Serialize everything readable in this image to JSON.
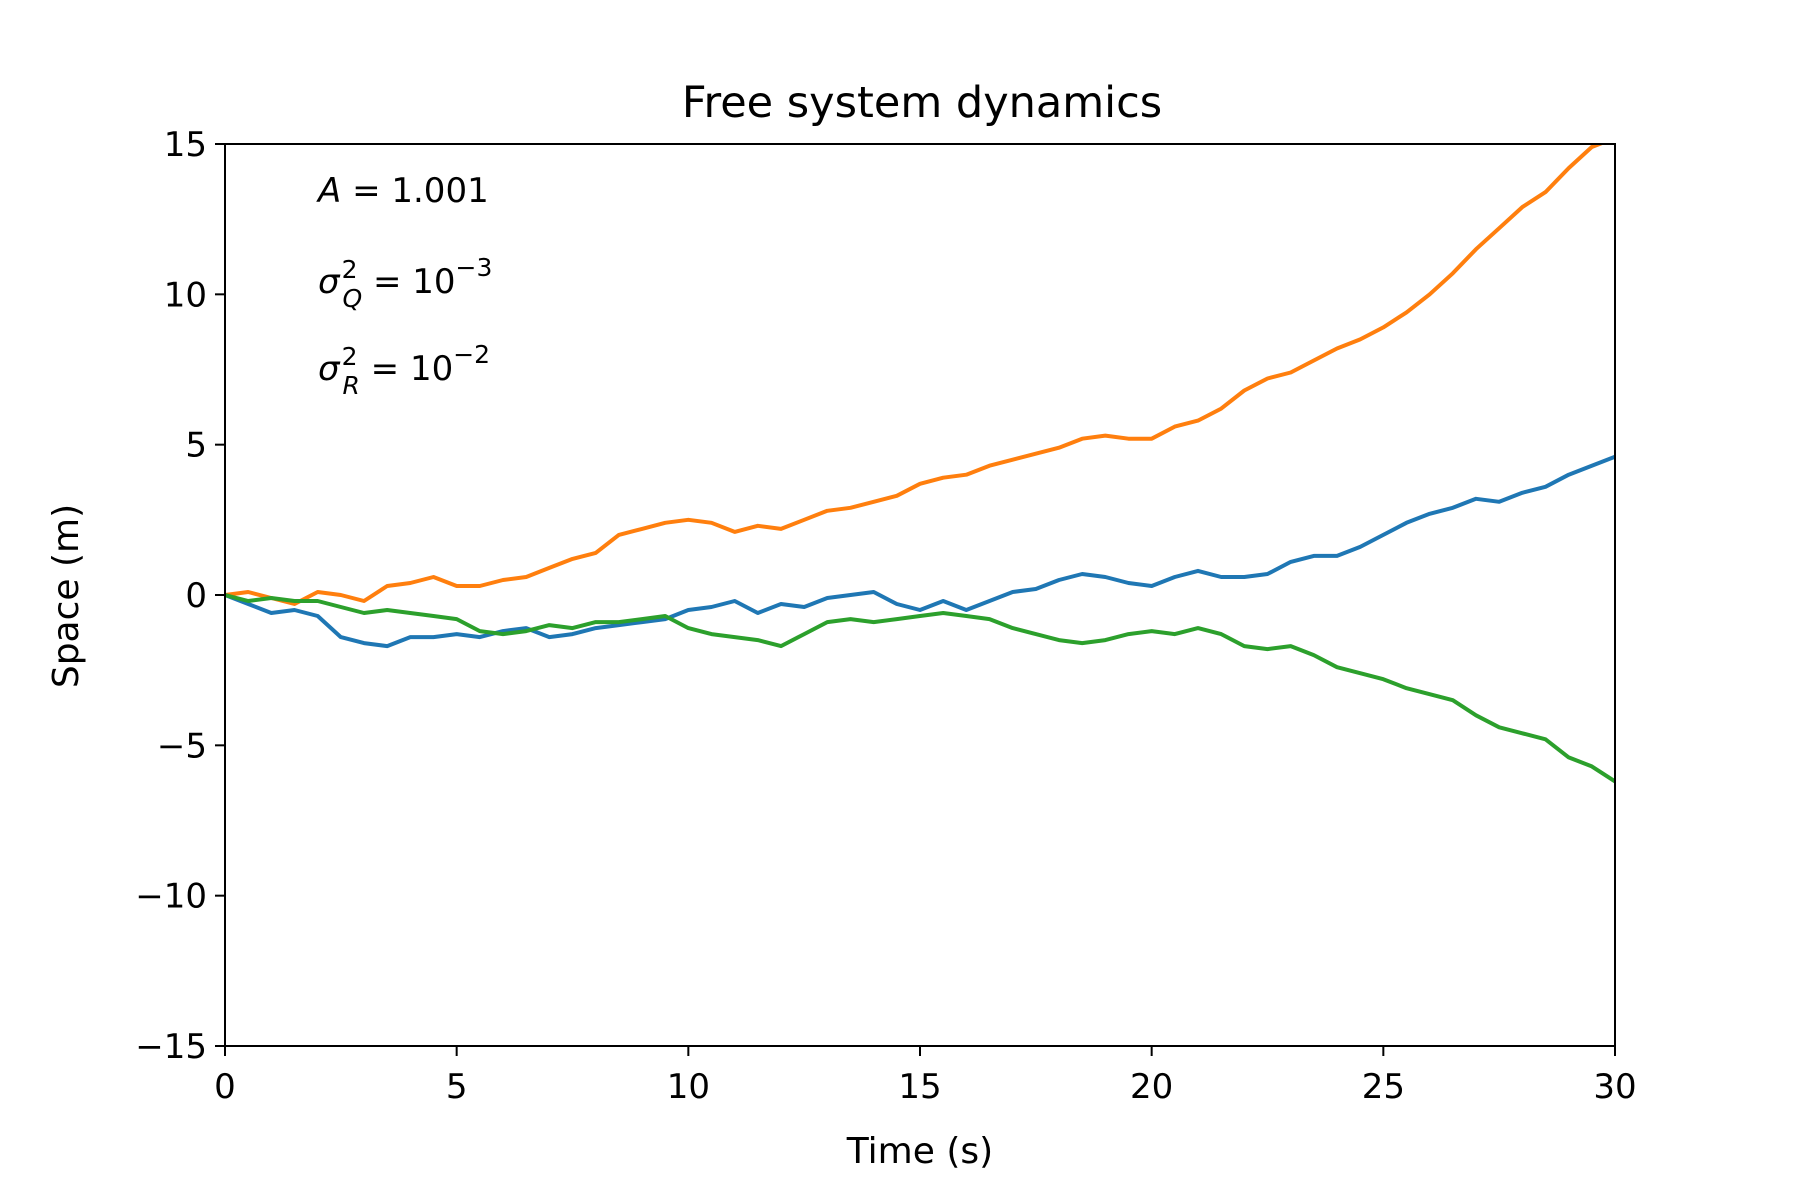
{
  "chart_data": {
    "type": "line",
    "title": "Free system dynamics",
    "xlabel": "Time (s)",
    "ylabel": "Space (m)",
    "xlim": [
      0,
      30
    ],
    "ylim": [
      -15,
      15
    ],
    "xticks": [
      0,
      5,
      10,
      15,
      20,
      25,
      30
    ],
    "yticks": [
      -15,
      -10,
      -5,
      0,
      5,
      10,
      15
    ],
    "xtick_labels": [
      "0",
      "5",
      "10",
      "15",
      "20",
      "25",
      "30"
    ],
    "ytick_labels": [
      "−15",
      "−10",
      "−5",
      "0",
      "5",
      "10",
      "15"
    ],
    "grid": false,
    "legend": "none",
    "annotations": {
      "a": {
        "symbol": "A",
        "rest": " = 1.001"
      },
      "q": {
        "symbol": "σ",
        "sup": "2",
        "sub": "Q",
        "rest": " = 10",
        "exp": "−3"
      },
      "r": {
        "symbol": "σ",
        "sup": "2",
        "sub": "R",
        "rest": " = 10",
        "exp": "−2"
      }
    },
    "series": [
      {
        "color": "#1f77b4",
        "x": [
          0,
          0.5,
          1,
          1.5,
          2,
          2.5,
          3,
          3.5,
          4,
          4.5,
          5,
          5.5,
          6,
          6.5,
          7,
          7.5,
          8,
          8.5,
          9,
          9.5,
          10,
          10.5,
          11,
          11.5,
          12,
          12.5,
          13,
          13.5,
          14,
          14.5,
          15,
          15.5,
          16,
          16.5,
          17,
          17.5,
          18,
          18.5,
          19,
          19.5,
          20,
          20.5,
          21,
          21.5,
          22,
          22.5,
          23,
          23.5,
          24,
          24.5,
          25,
          25.5,
          26,
          26.5,
          27,
          27.5,
          28,
          28.5,
          29,
          29.5,
          30
        ],
        "values": [
          0,
          -0.3,
          -0.6,
          -0.5,
          -0.7,
          -1.4,
          -1.6,
          -1.7,
          -1.4,
          -1.4,
          -1.3,
          -1.4,
          -1.2,
          -1.1,
          -1.4,
          -1.3,
          -1.1,
          -1.0,
          -0.9,
          -0.8,
          -0.5,
          -0.4,
          -0.2,
          -0.6,
          -0.3,
          -0.4,
          -0.1,
          0.0,
          0.1,
          -0.3,
          -0.5,
          -0.2,
          -0.5,
          -0.2,
          0.1,
          0.2,
          0.5,
          0.7,
          0.6,
          0.4,
          0.3,
          0.6,
          0.8,
          0.6,
          0.6,
          0.7,
          1.1,
          1.3,
          1.3,
          1.6,
          2.0,
          2.4,
          2.7,
          2.9,
          3.2,
          3.1,
          3.4,
          3.6,
          4.0,
          4.3,
          4.6
        ]
      },
      {
        "color": "#ff7f0e",
        "x": [
          0,
          0.5,
          1,
          1.5,
          2,
          2.5,
          3,
          3.5,
          4,
          4.5,
          5,
          5.5,
          6,
          6.5,
          7,
          7.5,
          8,
          8.5,
          9,
          9.5,
          10,
          10.5,
          11,
          11.5,
          12,
          12.5,
          13,
          13.5,
          14,
          14.5,
          15,
          15.5,
          16,
          16.5,
          17,
          17.5,
          18,
          18.5,
          19,
          19.5,
          20,
          20.5,
          21,
          21.5,
          22,
          22.5,
          23,
          23.5,
          24,
          24.5,
          25,
          25.5,
          26,
          26.5,
          27,
          27.5,
          28,
          28.5,
          29,
          29.5,
          30
        ],
        "values": [
          0,
          0.1,
          -0.1,
          -0.3,
          0.1,
          0.0,
          -0.2,
          0.3,
          0.4,
          0.6,
          0.3,
          0.3,
          0.5,
          0.6,
          0.9,
          1.2,
          1.4,
          2.0,
          2.2,
          2.4,
          2.5,
          2.4,
          2.1,
          2.3,
          2.2,
          2.5,
          2.8,
          2.9,
          3.1,
          3.3,
          3.7,
          3.9,
          4.0,
          4.3,
          4.5,
          4.7,
          4.9,
          5.2,
          5.3,
          5.2,
          5.2,
          5.6,
          5.8,
          6.2,
          6.8,
          7.2,
          7.4,
          7.8,
          8.2,
          8.5,
          8.9,
          9.4,
          10.0,
          10.7,
          11.5,
          12.2,
          12.9,
          13.4,
          14.2,
          14.9,
          15.2
        ]
      },
      {
        "color": "#2ca02c",
        "x": [
          0,
          0.5,
          1,
          1.5,
          2,
          2.5,
          3,
          3.5,
          4,
          4.5,
          5,
          5.5,
          6,
          6.5,
          7,
          7.5,
          8,
          8.5,
          9,
          9.5,
          10,
          10.5,
          11,
          11.5,
          12,
          12.5,
          13,
          13.5,
          14,
          14.5,
          15,
          15.5,
          16,
          16.5,
          17,
          17.5,
          18,
          18.5,
          19,
          19.5,
          20,
          20.5,
          21,
          21.5,
          22,
          22.5,
          23,
          23.5,
          24,
          24.5,
          25,
          25.5,
          26,
          26.5,
          27,
          27.5,
          28,
          28.5,
          29,
          29.5,
          30
        ],
        "values": [
          0,
          -0.2,
          -0.1,
          -0.2,
          -0.2,
          -0.4,
          -0.6,
          -0.5,
          -0.6,
          -0.7,
          -0.8,
          -1.2,
          -1.3,
          -1.2,
          -1.0,
          -1.1,
          -0.9,
          -0.9,
          -0.8,
          -0.7,
          -1.1,
          -1.3,
          -1.4,
          -1.5,
          -1.7,
          -1.3,
          -0.9,
          -0.8,
          -0.9,
          -0.8,
          -0.7,
          -0.6,
          -0.7,
          -0.8,
          -1.1,
          -1.3,
          -1.5,
          -1.6,
          -1.5,
          -1.3,
          -1.2,
          -1.3,
          -1.1,
          -1.3,
          -1.7,
          -1.8,
          -1.7,
          -2.0,
          -2.4,
          -2.6,
          -2.8,
          -3.1,
          -3.3,
          -3.5,
          -4.0,
          -4.4,
          -4.6,
          -4.8,
          -5.4,
          -5.7,
          -6.2
        ]
      }
    ]
  }
}
